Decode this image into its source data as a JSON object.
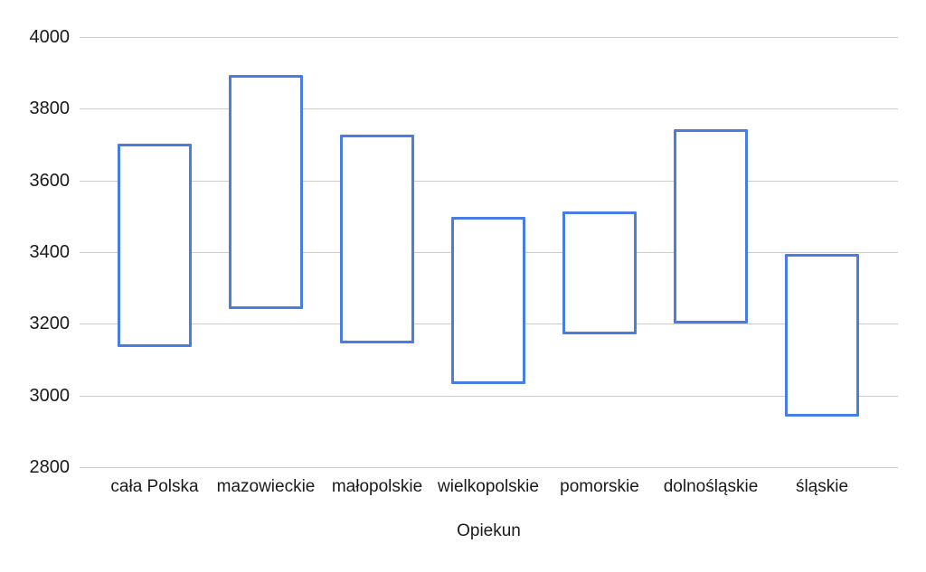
{
  "chart_data": {
    "type": "bar",
    "subtype": "floating-range-columns",
    "title": "",
    "xlabel": "Opiekun",
    "ylabel": "",
    "categories": [
      "cała Polska",
      "mazowieckie",
      "małopolskie",
      "wielkopolskie",
      "pomorskie",
      "dolnośląskie",
      "śląskie"
    ],
    "ranges": [
      {
        "category": "cała Polska",
        "low": 3140,
        "high": 3700
      },
      {
        "category": "mazowieckie",
        "low": 3245,
        "high": 3890
      },
      {
        "category": "małopolskie",
        "low": 3150,
        "high": 3725
      },
      {
        "category": "wielkopolskie",
        "low": 3035,
        "high": 3495
      },
      {
        "category": "pomorskie",
        "low": 3175,
        "high": 3510
      },
      {
        "category": "dolnośląskie",
        "low": 3205,
        "high": 3740
      },
      {
        "category": "śląskie",
        "low": 2945,
        "high": 3390
      }
    ],
    "ylim": [
      2800,
      4000
    ],
    "yticks": [
      4000,
      3800,
      3600,
      3400,
      3200,
      3000,
      2800
    ],
    "grid": true,
    "legend": "none",
    "colors": {
      "bar_stroke": "#4a7de2",
      "bar_fill": "#ffffff",
      "gridline": "#cccccc",
      "text": "#1a1a1a",
      "background": "#ffffff"
    }
  }
}
